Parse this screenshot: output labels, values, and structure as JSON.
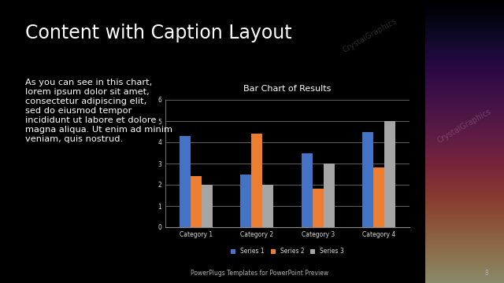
{
  "slide": {
    "title": "Content with Caption Layout",
    "caption": "As you can see in this chart, lorem ipsum dolor sit amet, consectetur adipiscing elit, sed do eiusmod tempor incididunt ut labore et dolore magna aliqua. Ut enim ad minim veniam, quis nostrud.",
    "footer": "PowerPlugs Templates for PowerPoint Preview",
    "page_number": 8,
    "watermark": "CrystalGraphics"
  },
  "chart_data": {
    "type": "bar",
    "title": "Bar Chart of Results",
    "categories": [
      "Category 1",
      "Category 2",
      "Category 3",
      "Category 4"
    ],
    "series": [
      {
        "name": "Series 1",
        "color": "#4472c4",
        "values": [
          4.3,
          2.5,
          3.5,
          4.5
        ]
      },
      {
        "name": "Series 2",
        "color": "#ed7d31",
        "values": [
          2.4,
          4.4,
          1.8,
          2.8
        ]
      },
      {
        "name": "Series 3",
        "color": "#a5a5a5",
        "values": [
          2,
          2,
          3,
          5
        ]
      }
    ],
    "ylim": [
      0,
      6
    ],
    "yticks": [
      0,
      1,
      2,
      3,
      4,
      5,
      6
    ],
    "grid": true,
    "legend": "bottom"
  }
}
